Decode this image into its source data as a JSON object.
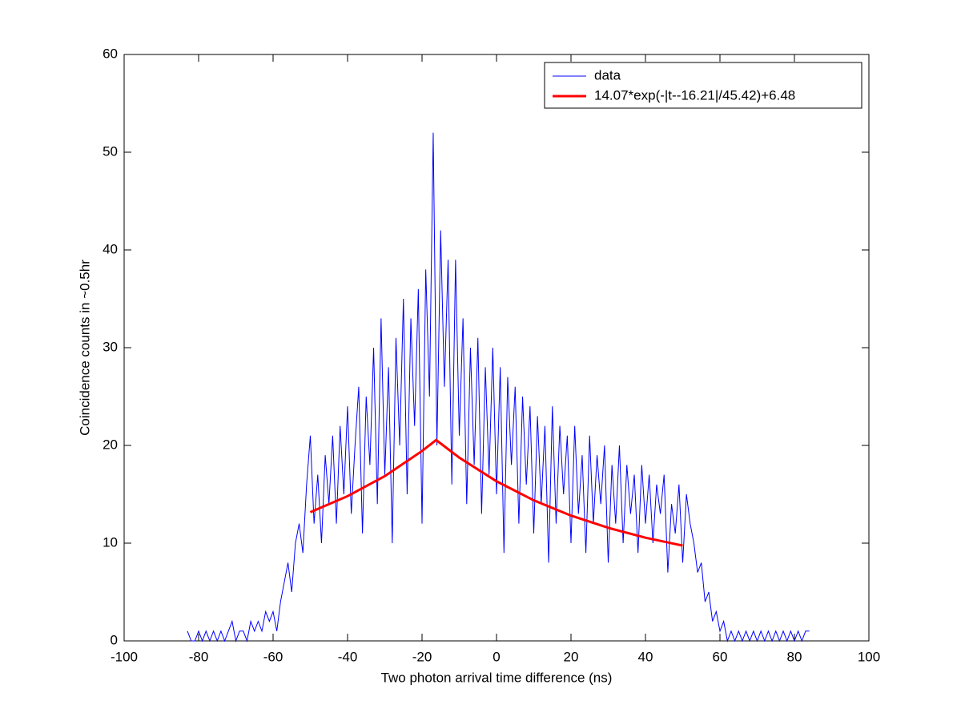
{
  "chart_data": {
    "type": "line",
    "x_label": "Two photon arrival time difference (ns)",
    "y_label": "Coincidence counts in ~0.5hr",
    "xlim": [
      -100,
      100
    ],
    "xticks": [
      -100,
      -80,
      -60,
      -40,
      -20,
      0,
      20,
      40,
      60,
      80,
      100
    ],
    "ylim": [
      0,
      60
    ],
    "yticks": [
      0,
      10,
      20,
      30,
      40,
      50,
      60
    ],
    "legend": "northeast",
    "series": [
      {
        "name": "data",
        "color": "#0000ff",
        "width": 1,
        "x": [
          -83,
          -82,
          -81,
          -80,
          -79,
          -78,
          -77,
          -76,
          -75,
          -74,
          -73,
          -72,
          -71,
          -70,
          -69,
          -68,
          -67,
          -66,
          -65,
          -64,
          -63,
          -62,
          -61,
          -60,
          -59,
          -58,
          -57,
          -56,
          -55,
          -54,
          -53,
          -52,
          -51,
          -50,
          -49,
          -48,
          -47,
          -46,
          -45,
          -44,
          -43,
          -42,
          -41,
          -40,
          -39,
          -38,
          -37,
          -36,
          -35,
          -34,
          -33,
          -32,
          -31,
          -30,
          -29,
          -28,
          -27,
          -26,
          -25,
          -24,
          -23,
          -22,
          -21,
          -20,
          -19,
          -18,
          -17,
          -16,
          -15,
          -14,
          -13,
          -12,
          -11,
          -10,
          -9,
          -8,
          -7,
          -6,
          -5,
          -4,
          -3,
          -2,
          -1,
          0,
          1,
          2,
          3,
          4,
          5,
          6,
          7,
          8,
          9,
          10,
          11,
          12,
          13,
          14,
          15,
          16,
          17,
          18,
          19,
          20,
          21,
          22,
          23,
          24,
          25,
          26,
          27,
          28,
          29,
          30,
          31,
          32,
          33,
          34,
          35,
          36,
          37,
          38,
          39,
          40,
          41,
          42,
          43,
          44,
          45,
          46,
          47,
          48,
          49,
          50,
          51,
          52,
          53,
          54,
          55,
          56,
          57,
          58,
          59,
          60,
          61,
          62,
          63,
          64,
          65,
          66,
          67,
          68,
          69,
          70,
          71,
          72,
          73,
          74,
          75,
          76,
          77,
          78,
          79,
          80,
          81,
          82,
          83,
          84
        ],
        "values": [
          1,
          0,
          0,
          1,
          0,
          1,
          0,
          1,
          0,
          1,
          0,
          1,
          2,
          0,
          1,
          1,
          0,
          2,
          1,
          2,
          1,
          3,
          2,
          3,
          1,
          4,
          6,
          8,
          5,
          10,
          12,
          9,
          16,
          21,
          12,
          17,
          10,
          19,
          14,
          21,
          12,
          22,
          15,
          24,
          13,
          20,
          26,
          11,
          25,
          18,
          30,
          14,
          33,
          17,
          28,
          10,
          31,
          20,
          35,
          15,
          33,
          22,
          36,
          12,
          38,
          25,
          52,
          20,
          42,
          26,
          39,
          16,
          39,
          21,
          33,
          14,
          30,
          18,
          31,
          13,
          28,
          17,
          30,
          15,
          28,
          9,
          27,
          18,
          26,
          12,
          25,
          16,
          24,
          11,
          23,
          14,
          22,
          8,
          24,
          12,
          22,
          15,
          21,
          10,
          22,
          13,
          19,
          9,
          21,
          12,
          19,
          14,
          20,
          8,
          18,
          12,
          20,
          10,
          18,
          13,
          17,
          9,
          18,
          12,
          17,
          10,
          16,
          13,
          17,
          7,
          14,
          11,
          16,
          8,
          15,
          12,
          10,
          7,
          8,
          4,
          5,
          2,
          3,
          1,
          2,
          0,
          1,
          0,
          1,
          0,
          1,
          0,
          1,
          0,
          1,
          0,
          1,
          0,
          1,
          0,
          1,
          0,
          1,
          0,
          1,
          0,
          1,
          1
        ]
      },
      {
        "name": "14.07*exp(-|t--16.21|/45.42)+6.48",
        "color": "#ff0000",
        "width": 3,
        "x": [
          -50,
          -40,
          -30,
          -20,
          -16.21,
          -10,
          0,
          10,
          20,
          30,
          40,
          50
        ],
        "values": [
          13.17,
          14.81,
          16.86,
          19.43,
          20.55,
          18.75,
          16.33,
          14.38,
          12.82,
          11.57,
          10.56,
          9.75
        ]
      }
    ]
  }
}
